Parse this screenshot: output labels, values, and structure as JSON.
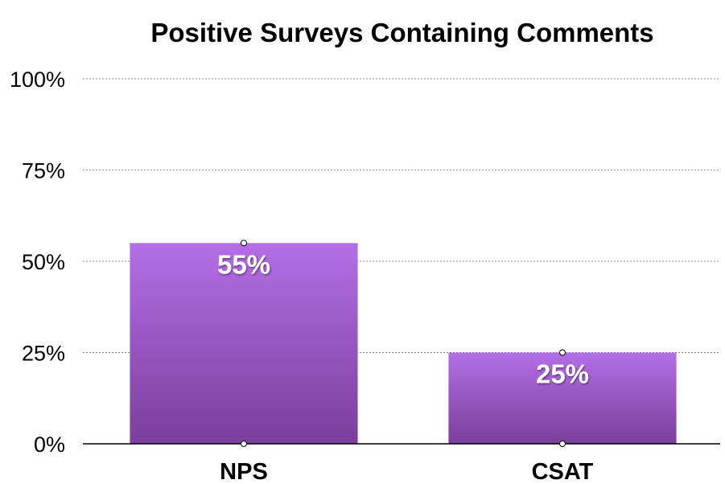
{
  "chart_data": {
    "type": "bar",
    "title": "Positive Surveys Containing Comments",
    "categories": [
      "NPS",
      "CSAT"
    ],
    "series": [
      {
        "values": [
          55,
          25
        ],
        "data_labels": [
          "55%",
          "25%"
        ]
      }
    ],
    "yticks": [
      0,
      25,
      50,
      75,
      100
    ],
    "ytick_labels": [
      "0%",
      "25%",
      "50%",
      "75%",
      "100%"
    ],
    "ylim": [
      0,
      100
    ],
    "xlabel": "",
    "ylabel": "",
    "grid": true,
    "colors": {
      "bar_top": "#b46ee6",
      "bar_bottom": "#7a3f9c"
    }
  }
}
